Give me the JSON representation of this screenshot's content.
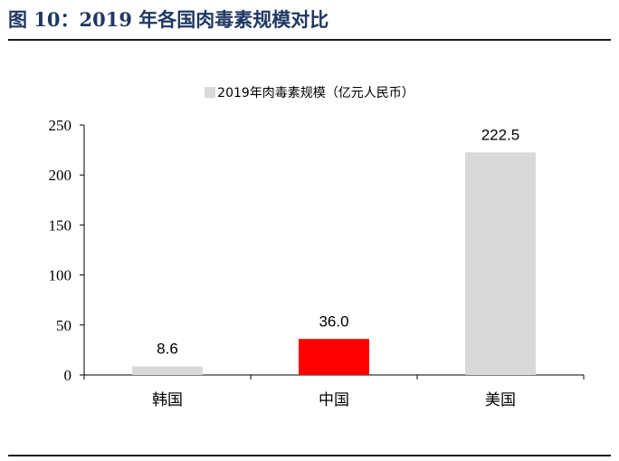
{
  "figure": {
    "title": "图 10：2019 年各国肉毒素规模对比"
  },
  "chart_data": {
    "type": "bar",
    "title": "",
    "xlabel": "",
    "ylabel": "",
    "categories": [
      "韩国",
      "中国",
      "美国"
    ],
    "series": [
      {
        "name": "2019年肉毒素规模（亿元人民币）",
        "values": [
          8.6,
          36.0,
          222.5
        ],
        "value_labels": [
          "8.6",
          "36.0",
          "222.5"
        ]
      }
    ],
    "bar_colors": [
      "#d9d9d9",
      "#ff0000",
      "#d9d9d9"
    ],
    "series_color": "#d9d9d9",
    "ylim": [
      0,
      250
    ],
    "yticks": [
      0,
      50,
      100,
      150,
      200,
      250
    ],
    "ytick_labels": [
      "0",
      "50",
      "100",
      "150",
      "200",
      "250"
    ],
    "grid": false,
    "legend_position": "top-center"
  }
}
